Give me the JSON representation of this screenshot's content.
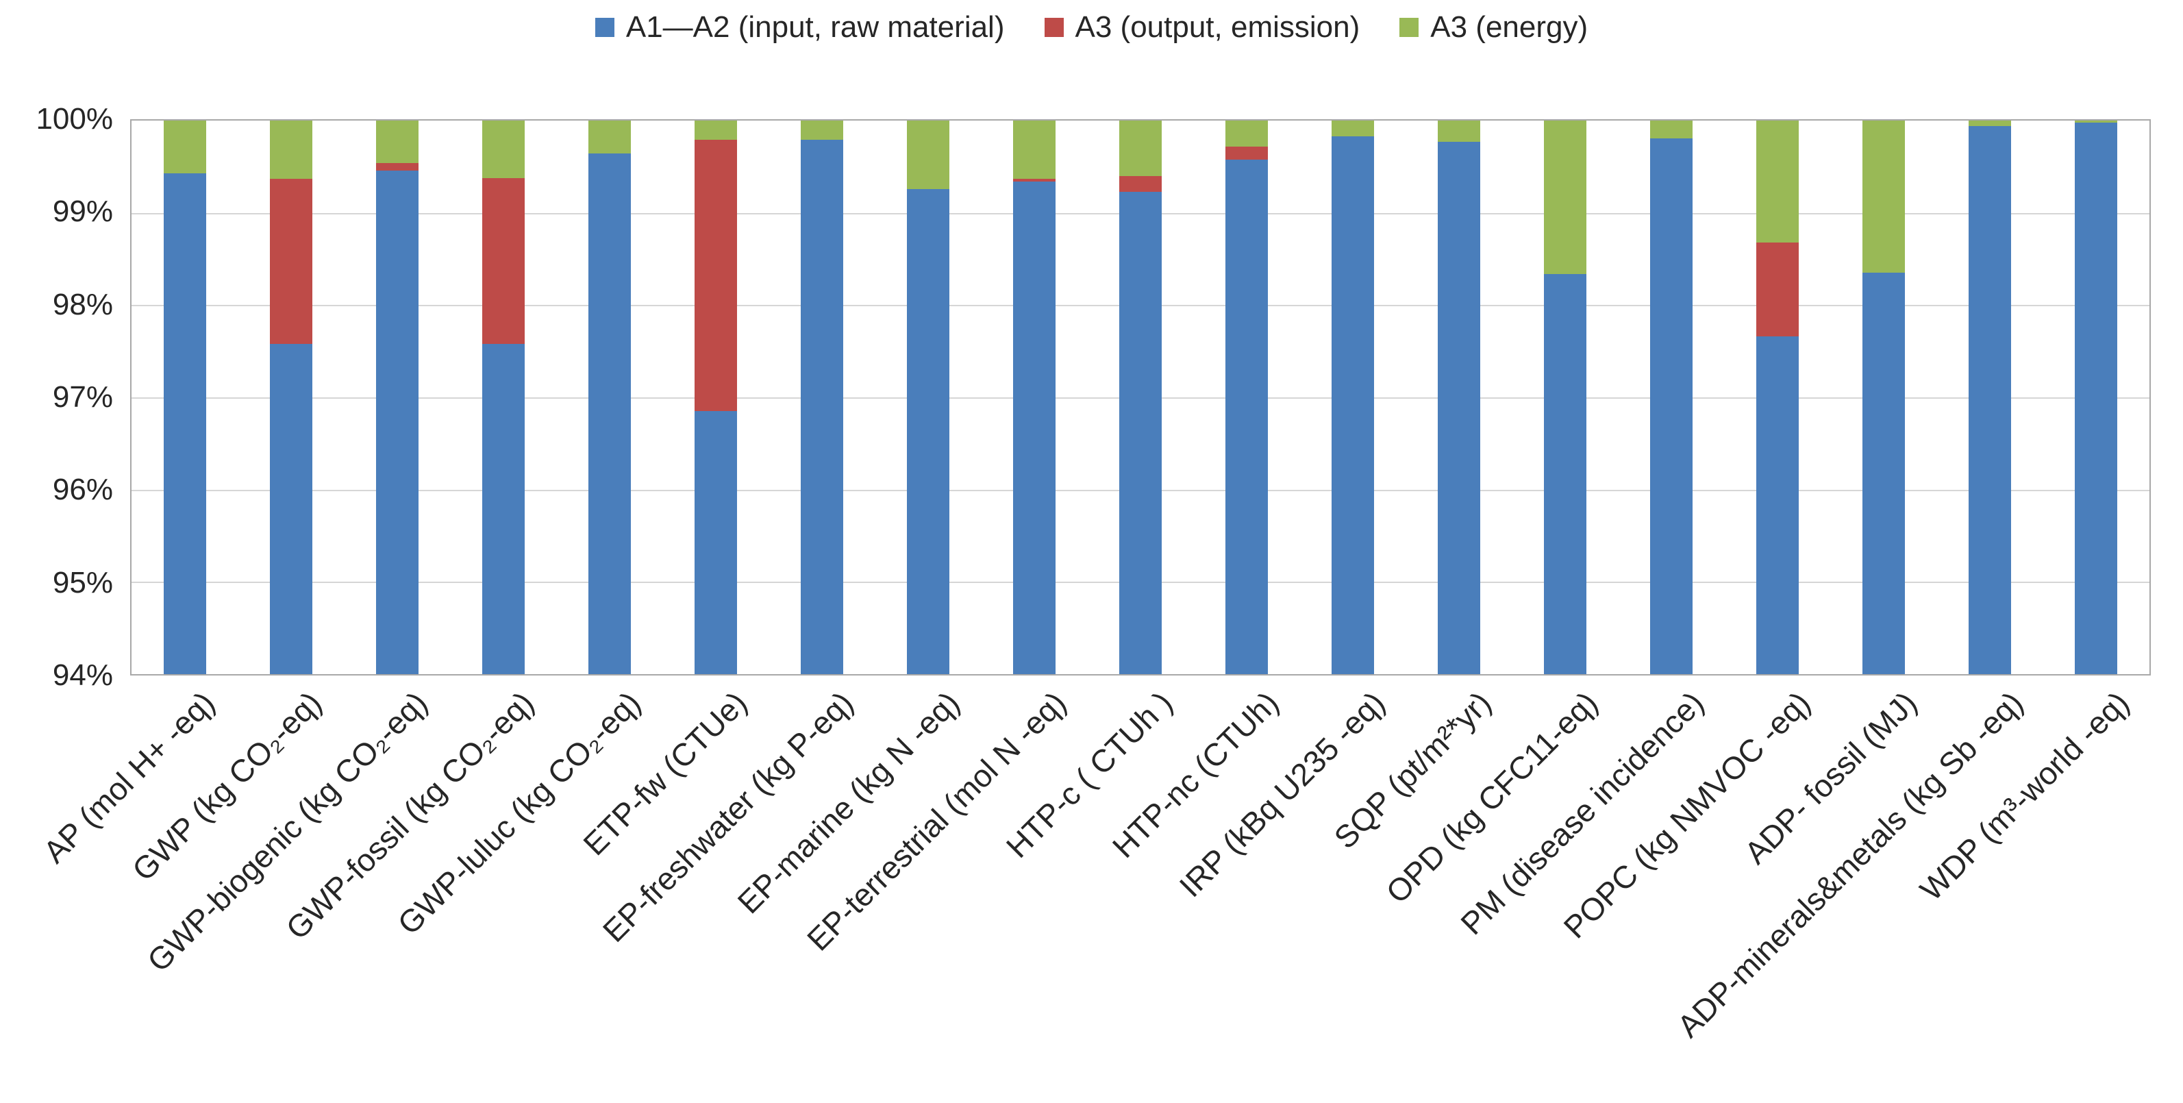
{
  "chart_data": {
    "type": "bar",
    "stacked": true,
    "legend_position": "top",
    "grid": true,
    "ylim": [
      94,
      100
    ],
    "yticks": [
      {
        "value": 100,
        "label": "100%"
      },
      {
        "value": 99,
        "label": "99%"
      },
      {
        "value": 98,
        "label": "98%"
      },
      {
        "value": 97,
        "label": "97%"
      },
      {
        "value": 96,
        "label": "96%"
      },
      {
        "value": 95,
        "label": "95%"
      },
      {
        "value": 94,
        "label": "94%"
      }
    ],
    "categories": [
      "AP (mol H+ -eq)",
      "GWP (kg CO₂-eq)",
      "GWP-biogenic (kg CO₂-eq)",
      "GWP-fossil (kg CO₂-eq)",
      "GWP-luluc (kg CO₂-eq)",
      "ETP-fw (CTUe)",
      "EP-freshwater (kg P-eq)",
      "EP-marine (kg N -eq)",
      "EP-terrestrial (mol N -eq)",
      "HTP-c ( CTUh )",
      "HTP-nc (CTUh)",
      "IRP (kBq U235 -eq)",
      "SQP (pt/m²*yr)",
      "OPD (kg CFC11-eq)",
      "PM (disease incidence)",
      "POPC (kg NMVOC -eq)",
      "ADP- fossil (MJ)",
      "ADP-minerals&metals (kg Sb -eq)",
      "WDP (m³-world -eq)"
    ],
    "series": [
      {
        "key": "a1-a2-input-raw-material",
        "name": "A1—A2 (input, raw material)",
        "color": "#4A7EBB",
        "values": [
          99.43,
          97.58,
          99.46,
          97.58,
          99.64,
          96.85,
          99.79,
          99.26,
          99.34,
          99.23,
          99.58,
          99.83,
          99.77,
          98.34,
          99.81,
          97.66,
          98.35,
          99.94,
          99.98
        ]
      },
      {
        "key": "a3-output-emission",
        "name": "A3 (output, emission)",
        "color": "#BE4B48",
        "values": [
          0,
          1.79,
          0.08,
          1.8,
          0,
          2.94,
          0,
          0,
          0.03,
          0.17,
          0.14,
          0,
          0,
          0,
          0,
          1.02,
          0,
          0,
          0
        ]
      },
      {
        "key": "a3-energy",
        "name": "A3 (energy)",
        "color": "#99B956",
        "values": [
          0.57,
          0.63,
          0.46,
          0.62,
          0.36,
          0.21,
          0.21,
          0.74,
          0.63,
          0.6,
          0.28,
          0.17,
          0.23,
          1.66,
          0.19,
          1.32,
          1.65,
          0.06,
          0.02
        ]
      }
    ],
    "colors": {
      "axis_border": "#A8A8A8",
      "gridline": "#D6D6D6",
      "text": "#262626",
      "background": "#FFFFFF"
    }
  }
}
